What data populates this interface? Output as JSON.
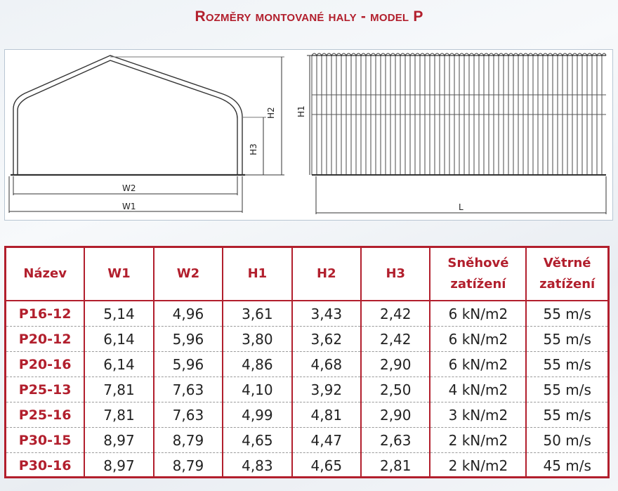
{
  "title": "Rozměry montované haly - model P",
  "drawing": {
    "front_labels": {
      "w1": "W1",
      "w2": "W2",
      "h2": "H2",
      "h3": "H3"
    },
    "side_labels": {
      "h1": "H1",
      "l": "L"
    }
  },
  "table": {
    "headers": [
      "Název",
      "W1",
      "W2",
      "H1",
      "H2",
      "H3",
      "Sněhové\nzatížení",
      "Větrné\nzatížení"
    ],
    "rows": [
      [
        "P16-12",
        "5,14",
        "4,96",
        "3,61",
        "3,43",
        "2,42",
        "6 kN/m2",
        "55 m/s"
      ],
      [
        "P20-12",
        "6,14",
        "5,96",
        "3,80",
        "3,62",
        "2,42",
        "6 kN/m2",
        "55 m/s"
      ],
      [
        "P20-16",
        "6,14",
        "5,96",
        "4,86",
        "4,68",
        "2,90",
        "6 kN/m2",
        "55 m/s"
      ],
      [
        "P25-13",
        "7,81",
        "7,63",
        "4,10",
        "3,92",
        "2,50",
        "4 kN/m2",
        "55 m/s"
      ],
      [
        "P25-16",
        "7,81",
        "7,63",
        "4,99",
        "4,81",
        "2,90",
        "3 kN/m2",
        "55 m/s"
      ],
      [
        "P30-15",
        "8,97",
        "8,79",
        "4,65",
        "4,47",
        "2,63",
        "2 kN/m2",
        "50 m/s"
      ],
      [
        "P30-16",
        "8,97",
        "8,79",
        "4,83",
        "4,65",
        "2,81",
        "2 kN/m2",
        "45 m/s"
      ]
    ]
  },
  "colors": {
    "accent": "#b21f2d",
    "text": "#222222",
    "panel": "#ffffff"
  }
}
